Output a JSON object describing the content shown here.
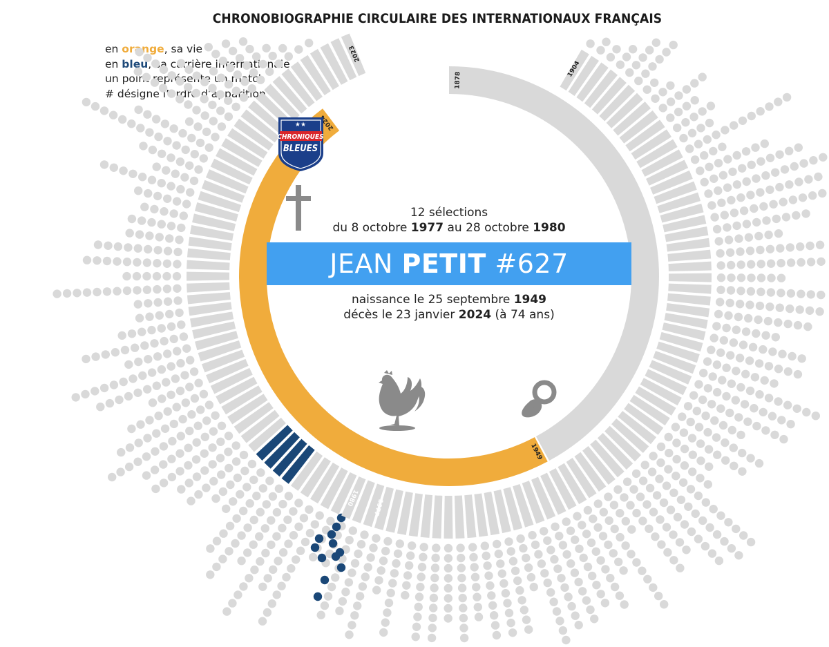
{
  "header": {
    "title": "CHRONOBIOGRAPHIE CIRCULAIRE DES INTERNATIONAUX FRANÇAIS"
  },
  "legend": {
    "line1_prefix": "en ",
    "line1_highlight": "orange",
    "line1_suffix": ", sa vie",
    "line2_prefix": "en ",
    "line2_highlight": "bleu",
    "line2_suffix": ", sa carrière internationale",
    "line3": "un point représente un match",
    "line4": "# désigne l’ordre d’apparition"
  },
  "logo": {
    "line1": "CHRONIQUES",
    "line2": "BLEUES",
    "stars": "★★"
  },
  "player": {
    "first_name": "JEAN",
    "last_name": "PETIT",
    "number": "#627",
    "selections": "12 sélections",
    "career_from_prefix": "du 8 octobre ",
    "career_from_year": "1977",
    "career_to_prefix": " au 28 octobre ",
    "career_to_year": "1980",
    "birth_prefix": "naissance le 25 septembre ",
    "birth_year": "1949",
    "death_prefix": "décès le 23 janvier ",
    "death_year": "2024",
    "death_suffix": " (à 74 ans)"
  },
  "ring_labels": {
    "start": "1878",
    "outer_start": "1904",
    "outer_end": "2023",
    "life_start": "1949",
    "life_end": "2024",
    "career_start": "1977",
    "career_end": "1980"
  },
  "colors": {
    "life": "#f0ac3c",
    "career": "#1a4777",
    "inactive": "#d9d9d9",
    "banner": "#42a0f0",
    "text": "#222222"
  },
  "icons": [
    "cross-icon",
    "rooster-icon",
    "pacifier-icon",
    "chroniques-bleues-logo"
  ]
}
